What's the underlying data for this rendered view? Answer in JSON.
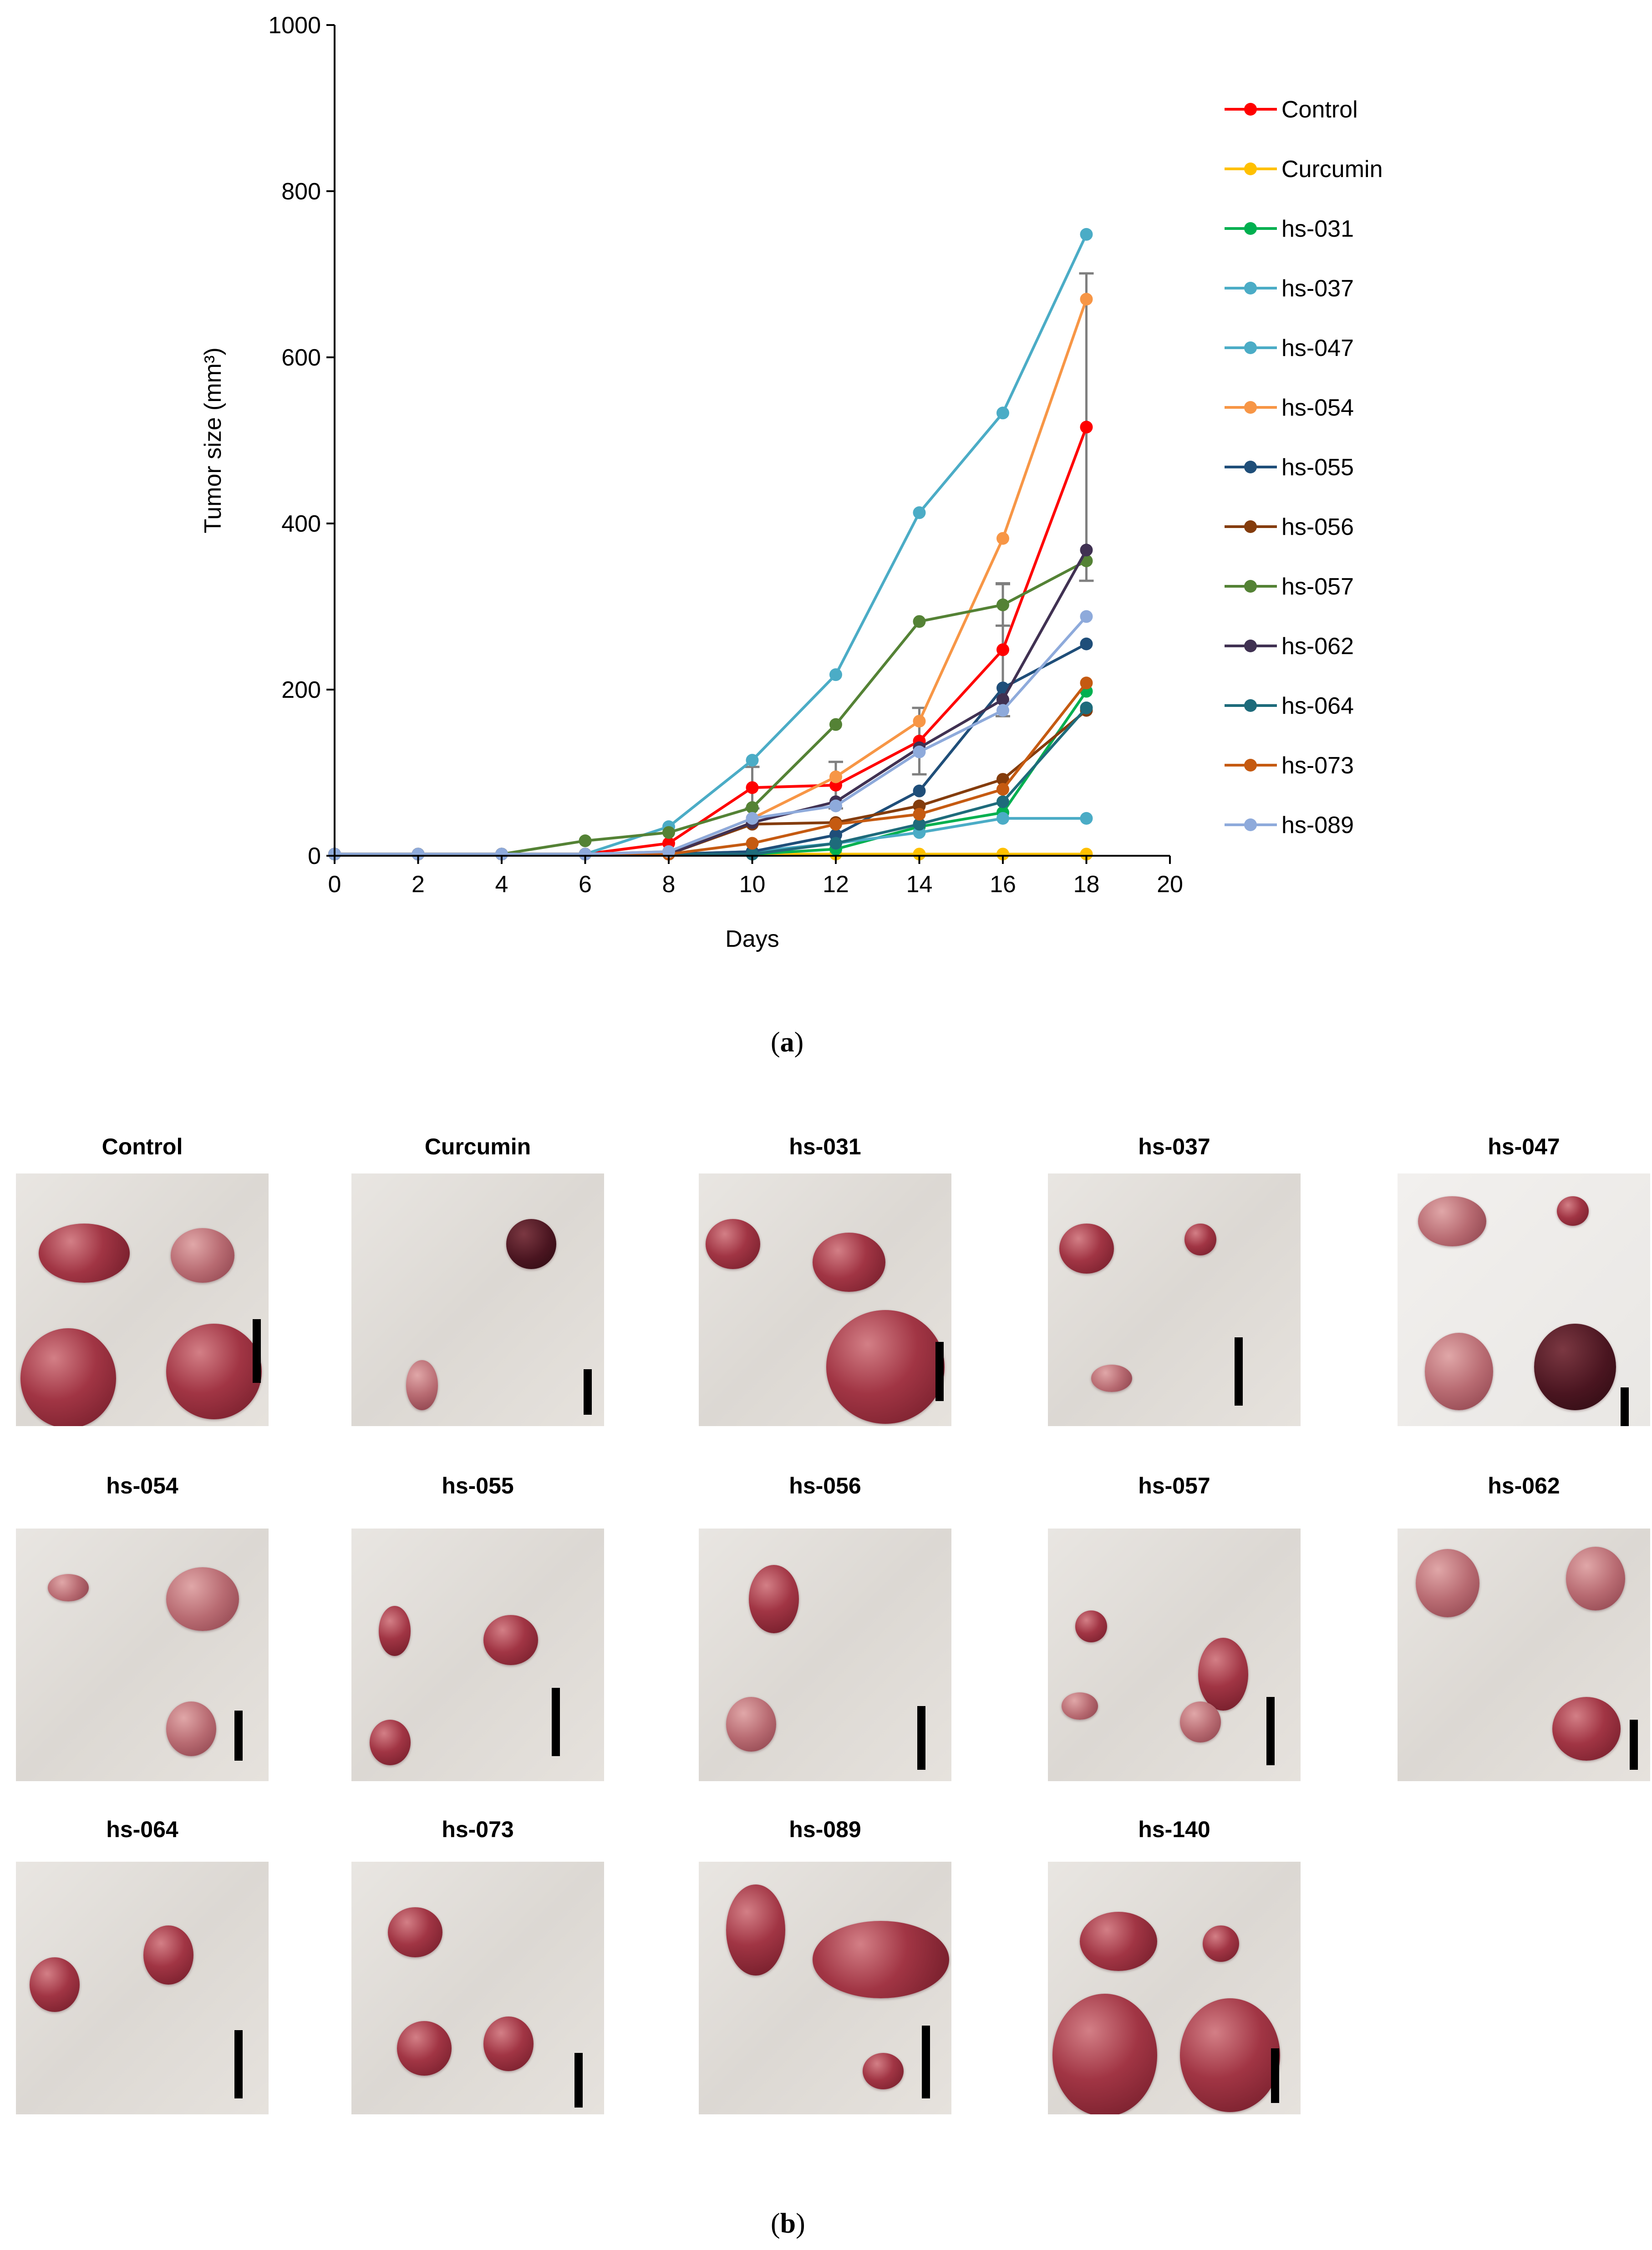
{
  "chart_data": {
    "type": "line",
    "xlabel": "Days",
    "ylabel": "Tumor size (mm³)",
    "xlim": [
      0,
      20
    ],
    "ylim": [
      0,
      1000
    ],
    "xticks": [
      0,
      2,
      4,
      6,
      8,
      10,
      12,
      14,
      16,
      18,
      20
    ],
    "yticks": [
      0,
      200,
      400,
      600,
      800,
      1000
    ],
    "x": [
      0,
      2,
      4,
      6,
      8,
      10,
      12,
      14,
      16,
      18
    ],
    "series": [
      {
        "name": "Control",
        "color": "#ff0000",
        "values": [
          2,
          2,
          2,
          2,
          15,
          82,
          85,
          138,
          248,
          516
        ],
        "errors": [
          0,
          0,
          0,
          0,
          0,
          25,
          28,
          40,
          80,
          185
        ]
      },
      {
        "name": "Curcumin",
        "color": "#ffc000",
        "values": [
          2,
          2,
          2,
          2,
          2,
          2,
          2,
          2,
          2,
          2
        ]
      },
      {
        "name": "hs-031",
        "color": "#00b050",
        "values": [
          2,
          2,
          2,
          2,
          2,
          2,
          8,
          35,
          52,
          198
        ]
      },
      {
        "name": "hs-037",
        "color": "#4bacc6",
        "values": [
          2,
          2,
          2,
          2,
          2,
          5,
          15,
          28,
          45,
          45
        ]
      },
      {
        "name": "hs-047",
        "color": "#4bacc6",
        "values": [
          2,
          2,
          2,
          2,
          35,
          115,
          218,
          413,
          533,
          748
        ]
      },
      {
        "name": "hs-054",
        "color": "#f79646",
        "values": [
          2,
          2,
          2,
          2,
          5,
          45,
          95,
          162,
          382,
          670
        ]
      },
      {
        "name": "hs-055",
        "color": "#1f4e79",
        "values": [
          2,
          2,
          2,
          2,
          2,
          5,
          25,
          78,
          202,
          255
        ]
      },
      {
        "name": "hs-056",
        "color": "#843c0c",
        "values": [
          2,
          2,
          2,
          2,
          2,
          38,
          40,
          60,
          92,
          175
        ]
      },
      {
        "name": "hs-057",
        "color": "#548235",
        "values": [
          2,
          2,
          2,
          18,
          28,
          58,
          158,
          282,
          302,
          355
        ],
        "errors": [
          0,
          0,
          0,
          0,
          0,
          0,
          0,
          0,
          25,
          0
        ]
      },
      {
        "name": "hs-062",
        "color": "#403152",
        "values": [
          2,
          2,
          2,
          2,
          2,
          40,
          65,
          130,
          188,
          368
        ]
      },
      {
        "name": "hs-064",
        "color": "#1e6b7b",
        "values": [
          2,
          2,
          2,
          2,
          2,
          2,
          15,
          38,
          65,
          178
        ]
      },
      {
        "name": "hs-073",
        "color": "#c55a11",
        "values": [
          2,
          2,
          2,
          2,
          2,
          15,
          38,
          50,
          80,
          208
        ]
      },
      {
        "name": "hs-089",
        "color": "#8eaadb",
        "values": [
          2,
          2,
          2,
          2,
          5,
          45,
          60,
          125,
          175,
          288
        ]
      }
    ]
  },
  "panel_labels": {
    "a": "a",
    "b": "b"
  },
  "photos": [
    {
      "title": "Control"
    },
    {
      "title": "Curcumin"
    },
    {
      "title": "hs-031"
    },
    {
      "title": "hs-037"
    },
    {
      "title": "hs-047"
    },
    {
      "title": "hs-054"
    },
    {
      "title": "hs-055"
    },
    {
      "title": "hs-056"
    },
    {
      "title": "hs-057"
    },
    {
      "title": "hs-062"
    },
    {
      "title": "hs-064"
    },
    {
      "title": "hs-073"
    },
    {
      "title": "hs-089"
    },
    {
      "title": "hs-140"
    }
  ]
}
